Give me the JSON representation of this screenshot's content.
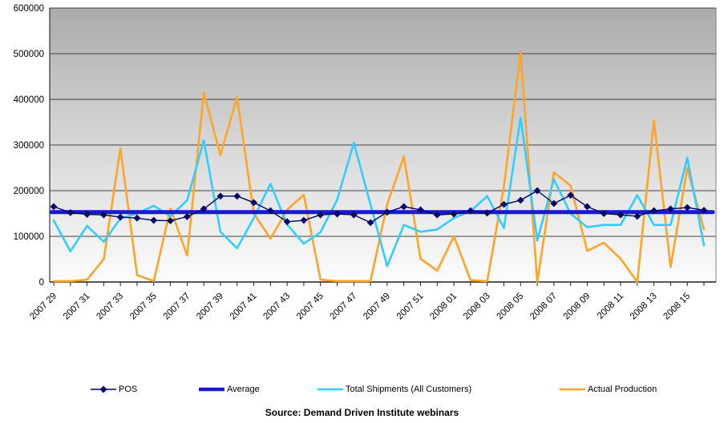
{
  "source_note": "Source: Demand Driven Institute webinars",
  "chart_data": {
    "type": "line",
    "title": "",
    "categories": [
      "2007 29",
      "2007 30",
      "2007 31",
      "2007 32",
      "2007 33",
      "2007 34",
      "2007 35",
      "2007 36",
      "2007 37",
      "2007 38",
      "2007 39",
      "2007 40",
      "2007 41",
      "2007 42",
      "2007 43",
      "2007 44",
      "2007 45",
      "2007 46",
      "2007 47",
      "2007 48",
      "2007 49",
      "2007 50",
      "2007 51",
      "2007 52",
      "2008 01",
      "2008 02",
      "2008 03",
      "2008 04",
      "2008 05",
      "2008 06",
      "2008 07",
      "2008 08",
      "2008 09",
      "2008 10",
      "2008 11",
      "2008 12",
      "2008 13",
      "2008 14",
      "2008 15",
      "2008 16"
    ],
    "x_tick_label_every": 2,
    "ylim": [
      0,
      600000
    ],
    "ytick_labels": [
      "0",
      "100000",
      "200000",
      "300000",
      "400000",
      "500000",
      "600000"
    ],
    "grid": "horizontal",
    "gridline_color": "#404040",
    "plot_background": {
      "type": "gradient",
      "top": "#ABABAB",
      "mid": "#D9D9D9",
      "bottom": "#FCFCFC"
    },
    "legend_position": "bottom",
    "series": [
      {
        "name": "POS",
        "color": "#000066",
        "line_width": 1.4,
        "marker": "diamond",
        "values": [
          165000,
          152000,
          148000,
          147000,
          142000,
          140000,
          135000,
          134000,
          143000,
          160000,
          188000,
          188000,
          174000,
          156000,
          132000,
          135000,
          147000,
          149000,
          147000,
          130000,
          153000,
          165000,
          158000,
          147000,
          149000,
          156000,
          151000,
          170000,
          179000,
          200000,
          172000,
          190000,
          165000,
          150000,
          147000,
          144000,
          156000,
          160000,
          163000,
          157000
        ]
      },
      {
        "name": "Average",
        "color": "#1A1ACD",
        "line_width": 5,
        "marker": "none",
        "constant_value": 153000
      },
      {
        "name": "Total Shipments (All Customers)",
        "color": "#33CCFF",
        "line_width": 2.6,
        "marker": "none",
        "values": [
          135000,
          67000,
          123000,
          88000,
          139000,
          150000,
          167000,
          144000,
          179000,
          310000,
          110000,
          74000,
          140000,
          215000,
          126000,
          84000,
          109000,
          180000,
          305000,
          170000,
          35000,
          125000,
          110000,
          115000,
          140000,
          155000,
          188000,
          118000,
          360000,
          91000,
          225000,
          150000,
          120000,
          125000,
          125000,
          190000,
          125000,
          125000,
          272000,
          80000
        ]
      },
      {
        "name": "Actual Production",
        "color": "#FFA428",
        "line_width": 2.6,
        "marker": "none",
        "values": [
          2000,
          2000,
          5000,
          50000,
          293000,
          15000,
          2000,
          161000,
          58000,
          415000,
          278000,
          405000,
          150000,
          95000,
          158000,
          191000,
          5000,
          2000,
          2000,
          2000,
          170000,
          275000,
          51000,
          25000,
          100000,
          4000,
          2000,
          210000,
          503000,
          0,
          240000,
          211000,
          68000,
          86000,
          51000,
          0,
          354000,
          33000,
          250000,
          115000
        ]
      }
    ]
  }
}
